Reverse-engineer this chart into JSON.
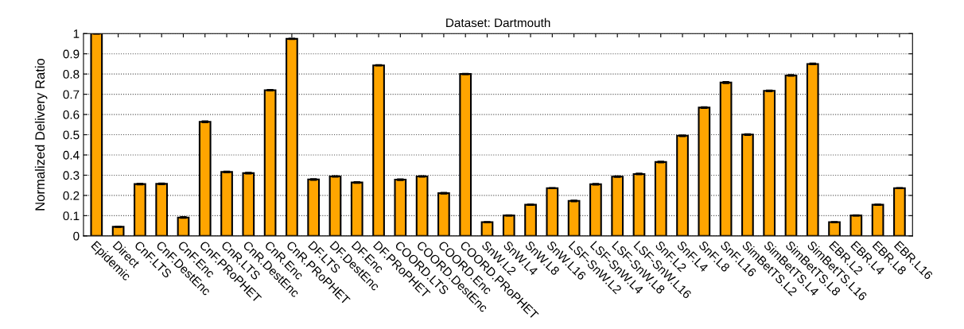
{
  "chart_data": {
    "type": "bar",
    "title": "Dataset: Dartmouth",
    "ylabel": "Normalized Delivery Ratio",
    "categories": [
      "Epidemic",
      "Direct",
      "CnF.LTS",
      "CnF.DestEnc",
      "CnF.Enc",
      "CnF.PRoPHET",
      "CnR.LTS",
      "CnR.DestEnc",
      "CnR.Enc",
      "CnR.PRoPHET",
      "DF.LTS",
      "DF.DestEnc",
      "DF.Enc",
      "DF.PRoPHET",
      "COORD.LTS",
      "COORD.DestEnc",
      "COORD.Enc",
      "COORD.PRoPHET",
      "SnW.L2",
      "SnW.L4",
      "SnW.L8",
      "SnW.L16",
      "LSF-SnW.L2",
      "LSF-SnW.L4",
      "LSF-SnW.L8",
      "LSF-SnW.L16",
      "SnF.L2",
      "SnF.L4",
      "SnF.L8",
      "SnF.L16",
      "SimBetTS.L2",
      "SimBetTS.L4",
      "SimBetTS.L8",
      "SimBetTS.L16",
      "EBR.L2",
      "EBR.L4",
      "EBR.L8",
      "EBR.L16"
    ],
    "values": [
      1.0,
      0.045,
      0.256,
      0.257,
      0.091,
      0.564,
      0.316,
      0.31,
      0.72,
      0.974,
      0.279,
      0.294,
      0.264,
      0.843,
      0.278,
      0.294,
      0.211,
      0.8,
      0.068,
      0.101,
      0.154,
      0.236,
      0.173,
      0.255,
      0.293,
      0.306,
      0.365,
      0.495,
      0.634,
      0.758,
      0.501,
      0.717,
      0.793,
      0.85,
      0.068,
      0.101,
      0.154,
      0.236
    ],
    "errors": [
      0.002,
      0.002,
      0.003,
      0.003,
      0.003,
      0.004,
      0.003,
      0.003,
      0.003,
      0.002,
      0.003,
      0.003,
      0.003,
      0.002,
      0.003,
      0.003,
      0.003,
      0.002,
      0.002,
      0.002,
      0.002,
      0.002,
      0.003,
      0.003,
      0.003,
      0.003,
      0.003,
      0.003,
      0.003,
      0.004,
      0.003,
      0.003,
      0.003,
      0.003,
      0.002,
      0.002,
      0.002,
      0.002
    ],
    "color": "#ffa500",
    "ylim": [
      0,
      1
    ],
    "yticks": [
      0,
      0.1,
      0.2,
      0.3,
      0.4,
      0.5,
      0.6,
      0.7,
      0.8,
      0.9,
      1
    ],
    "grid": "y",
    "legend": false
  }
}
